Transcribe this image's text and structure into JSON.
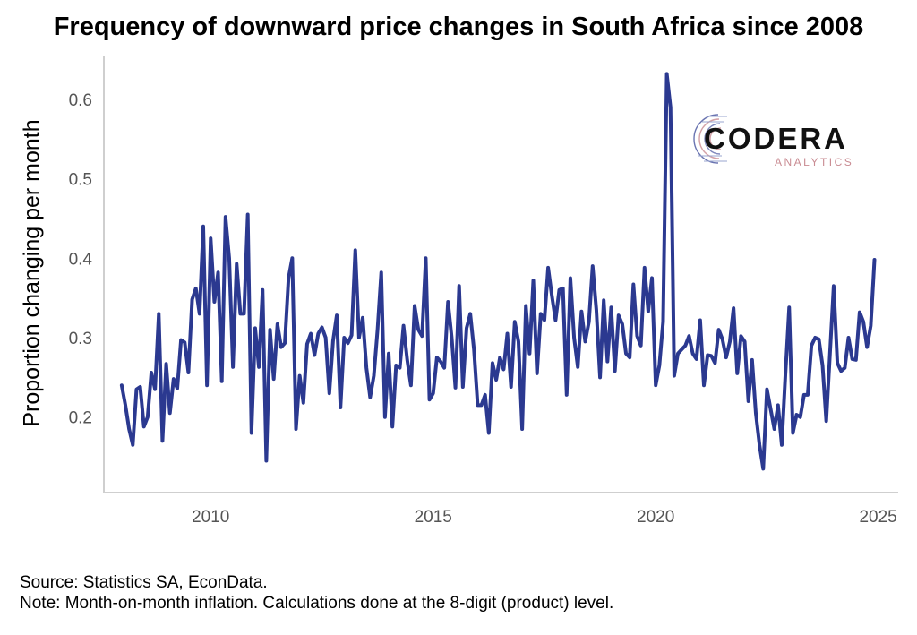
{
  "chart_data": {
    "type": "line",
    "title": "Frequency of downward price changes in South Africa since 2008",
    "xlabel": "",
    "ylabel": "Proportion changing per month",
    "xlim": [
      2007.6,
      2025.45
    ],
    "ylim": [
      0.105,
      0.655
    ],
    "x_ticks": [
      2010,
      2015,
      2020,
      2025
    ],
    "y_ticks": [
      0.2,
      0.3,
      0.4,
      0.5,
      0.6
    ],
    "grid": false,
    "color": "#2b3990",
    "x_start": 2008.0,
    "x_step": 0.083333,
    "values": [
      0.24,
      0.215,
      0.185,
      0.165,
      0.235,
      0.238,
      0.188,
      0.2,
      0.256,
      0.235,
      0.33,
      0.17,
      0.267,
      0.205,
      0.248,
      0.236,
      0.297,
      0.294,
      0.256,
      0.348,
      0.362,
      0.33,
      0.44,
      0.24,
      0.425,
      0.345,
      0.382,
      0.245,
      0.452,
      0.4,
      0.263,
      0.393,
      0.33,
      0.33,
      0.455,
      0.18,
      0.312,
      0.263,
      0.36,
      0.145,
      0.31,
      0.248,
      0.317,
      0.288,
      0.293,
      0.375,
      0.4,
      0.185,
      0.252,
      0.218,
      0.292,
      0.305,
      0.278,
      0.305,
      0.313,
      0.3,
      0.23,
      0.296,
      0.328,
      0.212,
      0.3,
      0.293,
      0.303,
      0.41,
      0.3,
      0.325,
      0.262,
      0.225,
      0.252,
      0.31,
      0.382,
      0.2,
      0.28,
      0.188,
      0.265,
      0.262,
      0.315,
      0.272,
      0.24,
      0.34,
      0.31,
      0.302,
      0.4,
      0.222,
      0.23,
      0.275,
      0.27,
      0.262,
      0.345,
      0.3,
      0.237,
      0.365,
      0.238,
      0.312,
      0.33,
      0.285,
      0.215,
      0.215,
      0.228,
      0.18,
      0.268,
      0.247,
      0.275,
      0.26,
      0.305,
      0.238,
      0.32,
      0.295,
      0.185,
      0.34,
      0.28,
      0.372,
      0.255,
      0.33,
      0.322,
      0.388,
      0.353,
      0.322,
      0.36,
      0.362,
      0.228,
      0.375,
      0.3,
      0.263,
      0.333,
      0.295,
      0.32,
      0.39,
      0.335,
      0.25,
      0.347,
      0.27,
      0.338,
      0.258,
      0.328,
      0.317,
      0.28,
      0.275,
      0.367,
      0.302,
      0.29,
      0.388,
      0.333,
      0.375,
      0.24,
      0.265,
      0.32,
      0.632,
      0.59,
      0.252,
      0.28,
      0.285,
      0.29,
      0.302,
      0.28,
      0.273,
      0.322,
      0.24,
      0.278,
      0.277,
      0.268,
      0.31,
      0.298,
      0.275,
      0.295,
      0.337,
      0.255,
      0.302,
      0.295,
      0.22,
      0.272,
      0.205,
      0.165,
      0.135,
      0.235,
      0.21,
      0.185,
      0.215,
      0.165,
      0.255,
      0.338,
      0.18,
      0.203,
      0.2,
      0.228,
      0.228,
      0.29,
      0.3,
      0.298,
      0.265,
      0.195,
      0.28,
      0.365,
      0.268,
      0.258,
      0.262,
      0.3,
      0.273,
      0.272,
      0.332,
      0.32,
      0.288,
      0.315,
      0.398
    ]
  },
  "source_note": {
    "source": "Source: Statistics SA, EconData.",
    "note": "Note: Month-on-month inflation. Calculations done at the 8-digit (product) level."
  },
  "logo": {
    "name": "CODERA",
    "sub": "ANALYTICS"
  }
}
